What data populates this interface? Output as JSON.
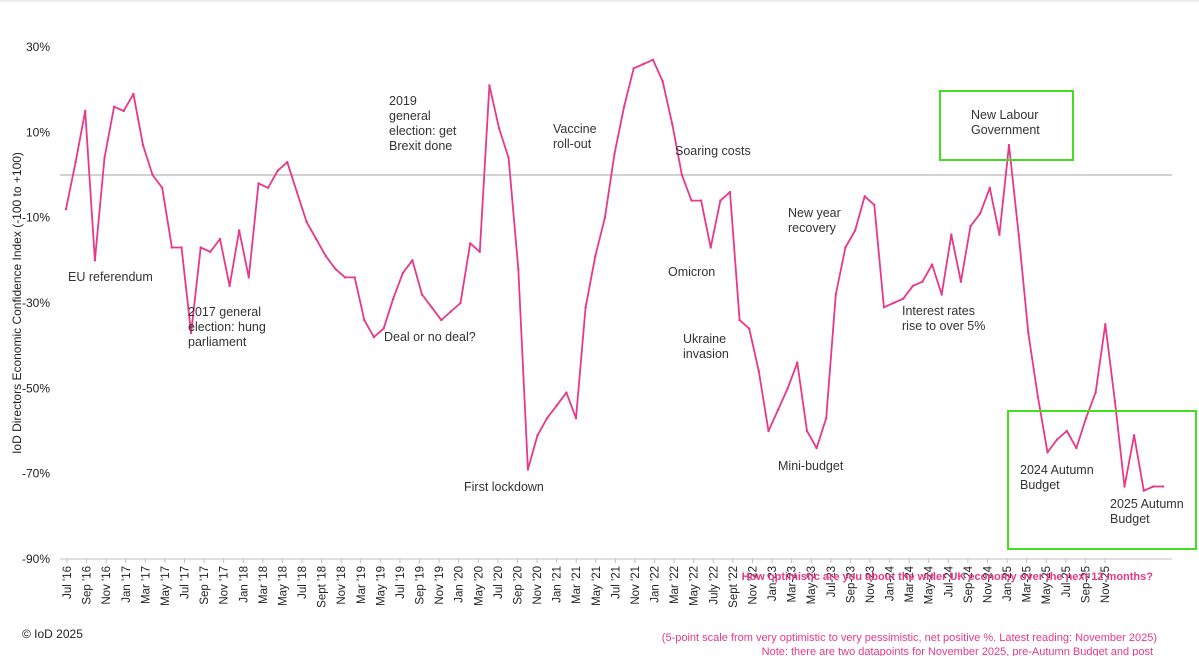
{
  "chart_data": {
    "type": "line",
    "ylabel": "IoD Directors Economic Confidence Index (-100 to +100)",
    "ylim": [
      -90,
      30
    ],
    "yticks": [
      30,
      10,
      -10,
      -30,
      -50,
      -70,
      -90
    ],
    "ytick_labels": [
      "30%",
      "10%",
      "-10%",
      "-30%",
      "-50%",
      "-70%",
      "-90%"
    ],
    "reference_line": 0,
    "xtick_labels": [
      "Jul '16",
      "Sep '16",
      "Nov '16",
      "Jan '17",
      "Mar '17",
      "May '17",
      "Jul '17",
      "Sep '17",
      "Nov '17",
      "Jan '18",
      "Mar '18",
      "May '18",
      "Jul '18",
      "Sept '18",
      "Nov '18",
      "Mar '19",
      "May '19",
      "Jul '19",
      "Sep '19",
      "Nov '19",
      "Jan '20",
      "May '20",
      "Jul '20",
      "Sep '20",
      "Nov '20",
      "Jan '21",
      "Mar '21",
      "May '21",
      "Jul '21",
      "Nov '21",
      "Jan '22",
      "Mar '22",
      "May '22",
      "July '22",
      "Sept '22",
      "Nov '22",
      "Jan-23",
      "Mar-23",
      "May-23",
      "Jul-23",
      "Sep-23",
      "Nov-23",
      "Jan-24",
      "Mar-24",
      "May-24",
      "Jul-24",
      "Sep-24",
      "Nov-24",
      "Jan-25",
      "Mar-25",
      "May-25",
      "Jul-25",
      "Sep-25",
      "Nov-25"
    ],
    "series": [
      {
        "name": "Economic Confidence Index",
        "color": "#e8388a",
        "values": [
          -8,
          3,
          15,
          -20,
          4,
          16,
          15,
          19,
          7,
          0,
          -3,
          -17,
          -17,
          -37,
          -17,
          -18,
          -15,
          -26,
          -13,
          -24,
          -2,
          -3,
          1,
          3,
          -4,
          -11,
          -15,
          -19,
          -22,
          -24,
          -24,
          -34,
          -38,
          -36,
          -29,
          -23,
          -20,
          -28,
          -31,
          -34,
          -32,
          -30,
          -16,
          -18,
          21,
          11,
          4,
          -22,
          -69,
          -61,
          -57,
          -54,
          -51,
          -57,
          -31,
          -19,
          -10,
          5,
          16,
          25,
          26,
          27,
          22,
          12,
          0,
          -6,
          -6,
          -17,
          -6,
          -4,
          -34,
          -36,
          -46,
          -60,
          -55,
          -50,
          -44,
          -60,
          -64,
          -57,
          -28,
          -17,
          -13,
          -5,
          -7,
          -31,
          -30,
          -29,
          -26,
          -25,
          -21,
          -28,
          -14,
          -25,
          -12,
          -9,
          -3,
          -14,
          7,
          -14,
          -37,
          -52,
          -65,
          -62,
          -60,
          -64,
          -57,
          -51,
          -35,
          -53,
          -73,
          -61,
          -74,
          -73,
          -73
        ]
      }
    ],
    "annotations": [
      {
        "id": "eu-referendum",
        "lines": [
          "EU referendum"
        ]
      },
      {
        "id": "election-2017",
        "lines": [
          "2017 general",
          "election: hung",
          "parliament"
        ]
      },
      {
        "id": "election-2019",
        "lines": [
          "2019",
          "general",
          "election: get",
          "Brexit done"
        ]
      },
      {
        "id": "deal-or-no-deal",
        "lines": [
          "Deal or no deal?"
        ]
      },
      {
        "id": "first-lockdown",
        "lines": [
          "First lockdown"
        ]
      },
      {
        "id": "vaccine-rollout",
        "lines": [
          "Vaccine",
          "roll-out"
        ]
      },
      {
        "id": "soaring-costs",
        "lines": [
          "Soaring costs"
        ]
      },
      {
        "id": "omicron",
        "lines": [
          "Omicron"
        ]
      },
      {
        "id": "ukraine-invasion",
        "lines": [
          "Ukraine",
          "invasion"
        ]
      },
      {
        "id": "mini-budget",
        "lines": [
          "Mini-budget"
        ]
      },
      {
        "id": "new-year-recovery",
        "lines": [
          "New year",
          "recovery"
        ]
      },
      {
        "id": "interest-rates",
        "lines": [
          "Interest rates",
          "rise to over 5%"
        ]
      },
      {
        "id": "new-labour-government",
        "lines": [
          "New Labour",
          "Government"
        ]
      },
      {
        "id": "autumn-budget-2024",
        "lines": [
          "2024 Autumn",
          "Budget"
        ]
      },
      {
        "id": "autumn-budget-2025",
        "lines": [
          "2025 Autumn",
          "Budget"
        ]
      }
    ],
    "highlight_color": "#44dd22",
    "footnotes": {
      "question": "How optimistic are you about the wider UK economy over the next 12 months?",
      "scale": "(5-point scale from very optimistic to very pessimistic, net positive %. Latest reading: November 2025)",
      "note": "Note: there are two datapoints for November 2025, pre-Autumn Budget and post",
      "color": "#e8388a"
    },
    "copyright": "© IoD 2025"
  }
}
